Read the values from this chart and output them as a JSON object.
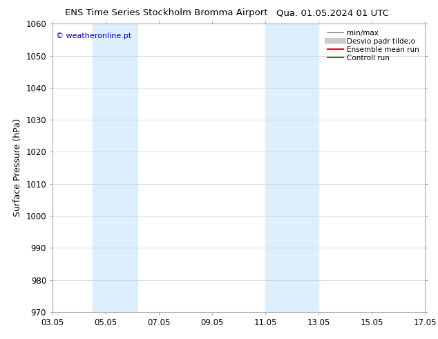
{
  "title_left": "ENS Time Series Stockholm Bromma Airport",
  "title_right": "Qua. 01.05.2024 01 UTC",
  "ylabel": "Surface Pressure (hPa)",
  "ylim": [
    970,
    1060
  ],
  "yticks": [
    970,
    980,
    990,
    1000,
    1010,
    1020,
    1030,
    1040,
    1050,
    1060
  ],
  "xlim_start": 0,
  "xlim_end": 14,
  "xtick_labels": [
    "03.05",
    "05.05",
    "07.05",
    "09.05",
    "11.05",
    "13.05",
    "15.05",
    "17.05"
  ],
  "xtick_positions": [
    0,
    2,
    4,
    6,
    8,
    10,
    12,
    14
  ],
  "shaded_bands": [
    {
      "xmin": 1.5,
      "xmax": 2.2
    },
    {
      "xmin": 2.2,
      "xmax": 3.2
    },
    {
      "xmin": 8.0,
      "xmax": 8.8
    },
    {
      "xmin": 8.8,
      "xmax": 10.0
    }
  ],
  "shade_color": "#ddeeff",
  "watermark_text": "© weatheronline.pt",
  "watermark_color": "#0000bb",
  "legend_items": [
    {
      "label": "min/max",
      "color": "#888888",
      "lw": 1.2,
      "ls": "-"
    },
    {
      "label": "Desvio padr tilde;o",
      "color": "#cccccc",
      "lw": 6,
      "ls": "-"
    },
    {
      "label": "Ensemble mean run",
      "color": "#ff0000",
      "lw": 1.5,
      "ls": "-"
    },
    {
      "label": "Controll run",
      "color": "#008800",
      "lw": 1.5,
      "ls": "-"
    }
  ],
  "bg_color": "#ffffff",
  "plot_bg_color": "#ffffff",
  "grid_color": "#cccccc",
  "tick_label_fontsize": 8.5,
  "axis_label_fontsize": 9,
  "title_fontsize": 9.5
}
